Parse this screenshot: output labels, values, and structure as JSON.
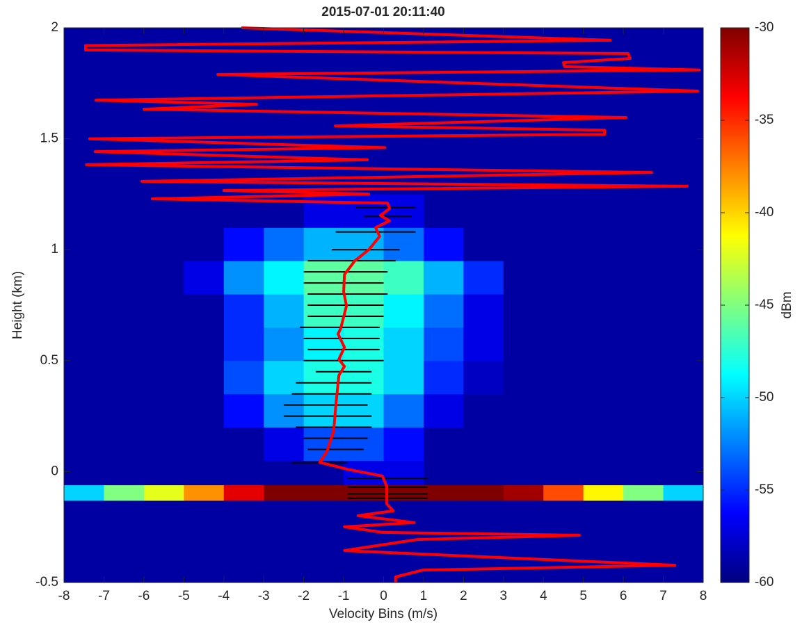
{
  "chart_data": {
    "type": "heatmap",
    "title": "2015-07-01 20:11:40",
    "x_label": "Velocity Bins (m/s)",
    "y_label": "Height (km)",
    "colorbar_label": "dBm",
    "colormap": "jet",
    "xlim": [
      -8,
      8
    ],
    "ylim": [
      -0.5,
      2
    ],
    "xticks": [
      -8,
      -7,
      -6,
      -5,
      -4,
      -3,
      -2,
      -1,
      0,
      1,
      2,
      3,
      4,
      5,
      6,
      7,
      8
    ],
    "yticks": [
      -0.5,
      0,
      0.5,
      1,
      1.5,
      2
    ],
    "clim": [
      -60,
      -30
    ],
    "cticks": [
      -60,
      -55,
      -50,
      -45,
      -40,
      -35,
      -30
    ],
    "x_bins": [
      -8,
      -7,
      -6,
      -5,
      -4,
      -3,
      -2,
      -1,
      0,
      1,
      2,
      3,
      4,
      5,
      6,
      7,
      8
    ],
    "y_bins": [
      -0.5,
      -0.13,
      -0.06,
      0.05,
      0.2,
      0.35,
      0.5,
      0.65,
      0.8,
      0.95,
      1.1,
      1.25,
      2
    ],
    "z": [
      [
        -59,
        -59,
        -59,
        -59,
        -59,
        -59,
        -59,
        -59,
        -59,
        -59,
        -59,
        -59,
        -59,
        -59,
        -59,
        -59
      ],
      [
        -50,
        -45,
        -42,
        -38,
        -33,
        -30,
        -30,
        -30,
        -30,
        -30,
        -30,
        -31,
        -36,
        -41,
        -45,
        -50
      ],
      [
        -59,
        -59,
        -59,
        -59,
        -59,
        -59,
        -59,
        -57,
        -57,
        -59,
        -59,
        -59,
        -59,
        -59,
        -59,
        -59
      ],
      [
        -59,
        -59,
        -59,
        -59,
        -59,
        -57,
        -54,
        -54,
        -56,
        -59,
        -59,
        -59,
        -59,
        -59,
        -59,
        -59
      ],
      [
        -59,
        -59,
        -59,
        -59,
        -56,
        -52,
        -50,
        -50,
        -53,
        -57,
        -59,
        -59,
        -59,
        -59,
        -59,
        -59
      ],
      [
        -59,
        -59,
        -59,
        -59,
        -54,
        -50,
        -48,
        -48,
        -50,
        -55,
        -58,
        -59,
        -59,
        -59,
        -59,
        -59
      ],
      [
        -59,
        -59,
        -59,
        -59,
        -55,
        -52,
        -49,
        -48,
        -50,
        -54,
        -57,
        -59,
        -59,
        -59,
        -59,
        -59
      ],
      [
        -59,
        -59,
        -59,
        -59,
        -55,
        -51,
        -47,
        -47,
        -49,
        -53,
        -57,
        -59,
        -59,
        -59,
        -59,
        -59
      ],
      [
        -59,
        -59,
        -59,
        -57,
        -52,
        -49,
        -46,
        -46,
        -47,
        -51,
        -55,
        -59,
        -59,
        -59,
        -59,
        -59
      ],
      [
        -59,
        -59,
        -59,
        -59,
        -56,
        -53,
        -51,
        -51,
        -53,
        -56,
        -59,
        -59,
        -59,
        -59,
        -59,
        -59
      ],
      [
        -59,
        -59,
        -59,
        -59,
        -59,
        -59,
        -57,
        -57,
        -57,
        -59,
        -59,
        -59,
        -59,
        -59,
        -59,
        -59
      ],
      [
        -59,
        -59,
        -59,
        -59,
        -59,
        -59,
        -59,
        -59,
        -59,
        -59,
        -59,
        -59,
        -59,
        -59,
        -59,
        -59
      ]
    ],
    "line": {
      "color": "#ff0000",
      "x": [
        -3.56,
        5.67,
        -7.46,
        -7.46,
        6.12,
        6.17,
        4.5,
        4.53,
        7.9,
        -4.15,
        7.86,
        -7.2,
        -3.18,
        -6.0,
        6.07,
        -1.21,
        5.53,
        5.53,
        -7.36,
        0.03,
        -7.22,
        -0.41,
        -7.44,
        6.71,
        -6.05,
        7.6,
        -4.0,
        -0.37,
        -5.79,
        0.1,
        0.15,
        -0.08,
        0.15,
        -0.2,
        -0.1,
        -0.37,
        -0.72,
        -0.98,
        -1.0,
        -0.93,
        -1.07,
        -1.14,
        -0.98,
        -1.12,
        -0.98,
        -1.12,
        -1.19,
        -1.25,
        -1.42,
        -1.6,
        -0.9,
        -0.03,
        0.08,
        0.08,
        0.24,
        -0.64,
        0.76,
        -0.98,
        -0.03,
        4.9,
        0.84,
        -0.98,
        2.1,
        7.29,
        0.98,
        0.3,
        0.3
      ],
      "y": [
        2.0,
        1.944,
        1.92,
        1.9,
        1.884,
        1.862,
        1.843,
        1.825,
        1.81,
        1.79,
        1.715,
        1.674,
        1.655,
        1.633,
        1.596,
        1.558,
        1.539,
        1.52,
        1.5,
        1.46,
        1.442,
        1.405,
        1.383,
        1.348,
        1.308,
        1.286,
        1.267,
        1.251,
        1.229,
        1.21,
        1.185,
        1.154,
        1.13,
        1.1,
        1.06,
        1.0,
        0.95,
        0.888,
        0.81,
        0.747,
        0.647,
        0.62,
        0.56,
        0.506,
        0.474,
        0.434,
        0.308,
        0.183,
        0.09,
        0.042,
        0.01,
        -0.02,
        -0.068,
        -0.146,
        -0.177,
        -0.199,
        -0.23,
        -0.249,
        -0.274,
        -0.287,
        -0.306,
        -0.356,
        -0.381,
        -0.422,
        -0.444,
        -0.475,
        -0.5
      ]
    },
    "errorbars": {
      "color": "#000000",
      "y": [
        1.19,
        1.15,
        1.08,
        1.0,
        0.95,
        0.9,
        0.85,
        0.8,
        0.75,
        0.7,
        0.65,
        0.6,
        0.55,
        0.5,
        0.45,
        0.4,
        0.35,
        0.3,
        0.25,
        0.2,
        0.15,
        0.1,
        0.04,
        -0.03,
        -0.07,
        -0.1,
        -0.12
      ],
      "x": [
        0.05,
        0.1,
        -0.2,
        -0.45,
        -0.8,
        -0.95,
        -1.0,
        -0.9,
        -0.95,
        -0.95,
        -1.1,
        -1.05,
        -1.0,
        -1.0,
        -1.0,
        -1.25,
        -1.3,
        -1.45,
        -1.4,
        -1.25,
        -1.2,
        -1.2,
        -1.6,
        0.1,
        0.1,
        0.1,
        0.1
      ],
      "error": [
        0.75,
        0.6,
        1.0,
        0.85,
        1.1,
        1.05,
        1.0,
        1.0,
        0.95,
        0.95,
        1.0,
        0.95,
        0.9,
        1.0,
        0.7,
        0.95,
        1.0,
        1.05,
        1.1,
        0.95,
        0.8,
        0.7,
        0.7,
        1.0,
        1.0,
        1.0,
        1.0
      ]
    }
  }
}
